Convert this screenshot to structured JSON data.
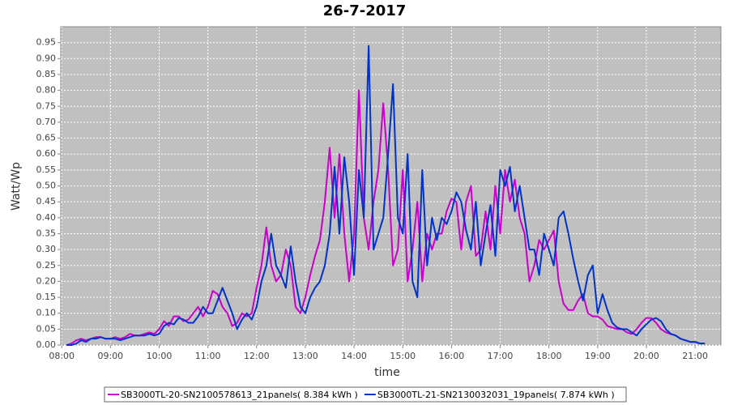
{
  "chart_data": {
    "type": "line",
    "title": "26-7-2017",
    "xlabel": "time",
    "ylabel": "Watt/Wp",
    "x": [
      8.1,
      8.2,
      8.3,
      8.4,
      8.5,
      8.6,
      8.7,
      8.8,
      8.9,
      9.0,
      9.1,
      9.2,
      9.3,
      9.4,
      9.5,
      9.6,
      9.7,
      9.8,
      9.9,
      10.0,
      10.1,
      10.2,
      10.3,
      10.4,
      10.5,
      10.6,
      10.7,
      10.8,
      10.9,
      11.0,
      11.1,
      11.2,
      11.3,
      11.4,
      11.5,
      11.6,
      11.7,
      11.8,
      11.9,
      12.0,
      12.1,
      12.2,
      12.3,
      12.4,
      12.5,
      12.6,
      12.7,
      12.8,
      12.9,
      13.0,
      13.1,
      13.2,
      13.3,
      13.4,
      13.5,
      13.6,
      13.7,
      13.8,
      13.9,
      14.0,
      14.1,
      14.2,
      14.3,
      14.4,
      14.5,
      14.6,
      14.7,
      14.8,
      14.9,
      15.0,
      15.1,
      15.2,
      15.3,
      15.4,
      15.5,
      15.6,
      15.7,
      15.8,
      15.9,
      16.0,
      16.1,
      16.2,
      16.3,
      16.4,
      16.5,
      16.6,
      16.7,
      16.8,
      16.9,
      17.0,
      17.1,
      17.2,
      17.3,
      17.4,
      17.5,
      17.6,
      17.7,
      17.8,
      17.9,
      18.0,
      18.1,
      18.2,
      18.3,
      18.4,
      18.5,
      18.6,
      18.7,
      18.8,
      18.9,
      19.0,
      19.1,
      19.2,
      19.3,
      19.4,
      19.5,
      19.6,
      19.7,
      19.8,
      19.9,
      20.0,
      20.1,
      20.2,
      20.3,
      20.4,
      20.5,
      20.6,
      20.7,
      20.8,
      20.9,
      21.0,
      21.1,
      21.2
    ],
    "series": [
      {
        "name": "SB3000TL-20-SN2100578613_21panels( 8.384 kWh )",
        "color": "#cc00cc",
        "values": [
          0,
          0.005,
          0.015,
          0.02,
          0.015,
          0.02,
          0.025,
          0.025,
          0.02,
          0.02,
          0.025,
          0.02,
          0.025,
          0.035,
          0.03,
          0.03,
          0.035,
          0.04,
          0.035,
          0.05,
          0.075,
          0.06,
          0.09,
          0.09,
          0.075,
          0.08,
          0.1,
          0.12,
          0.09,
          0.12,
          0.17,
          0.16,
          0.12,
          0.1,
          0.06,
          0.07,
          0.1,
          0.09,
          0.1,
          0.18,
          0.25,
          0.37,
          0.25,
          0.2,
          0.22,
          0.3,
          0.25,
          0.12,
          0.1,
          0.15,
          0.22,
          0.28,
          0.33,
          0.45,
          0.62,
          0.4,
          0.6,
          0.35,
          0.2,
          0.35,
          0.8,
          0.4,
          0.3,
          0.45,
          0.55,
          0.76,
          0.55,
          0.25,
          0.3,
          0.55,
          0.2,
          0.3,
          0.45,
          0.2,
          0.35,
          0.3,
          0.35,
          0.35,
          0.42,
          0.46,
          0.45,
          0.3,
          0.45,
          0.5,
          0.28,
          0.3,
          0.42,
          0.3,
          0.5,
          0.35,
          0.55,
          0.45,
          0.52,
          0.4,
          0.35,
          0.2,
          0.25,
          0.33,
          0.3,
          0.33,
          0.36,
          0.2,
          0.13,
          0.11,
          0.11,
          0.14,
          0.16,
          0.1,
          0.09,
          0.09,
          0.08,
          0.06,
          0.055,
          0.05,
          0.05,
          0.04,
          0.035,
          0.05,
          0.07,
          0.085,
          0.085,
          0.07,
          0.05,
          0.04,
          0.035,
          0.03,
          0.02,
          0.015,
          0.01,
          0.01,
          0.005,
          0.005
        ]
      },
      {
        "name": "SB3000TL-21-SN2130032031_19panels( 7.874 kWh )",
        "color": "#0033cc",
        "values": [
          0,
          0,
          0.005,
          0.015,
          0.01,
          0.02,
          0.02,
          0.025,
          0.02,
          0.02,
          0.02,
          0.015,
          0.02,
          0.025,
          0.03,
          0.03,
          0.03,
          0.035,
          0.03,
          0.035,
          0.06,
          0.07,
          0.065,
          0.085,
          0.08,
          0.07,
          0.07,
          0.09,
          0.12,
          0.1,
          0.1,
          0.14,
          0.18,
          0.14,
          0.1,
          0.05,
          0.08,
          0.1,
          0.08,
          0.12,
          0.2,
          0.25,
          0.35,
          0.25,
          0.22,
          0.18,
          0.31,
          0.2,
          0.12,
          0.1,
          0.15,
          0.18,
          0.2,
          0.25,
          0.35,
          0.56,
          0.35,
          0.59,
          0.45,
          0.22,
          0.55,
          0.4,
          0.94,
          0.3,
          0.35,
          0.4,
          0.6,
          0.82,
          0.4,
          0.35,
          0.6,
          0.2,
          0.15,
          0.55,
          0.25,
          0.4,
          0.33,
          0.4,
          0.38,
          0.42,
          0.48,
          0.45,
          0.36,
          0.3,
          0.45,
          0.25,
          0.35,
          0.44,
          0.28,
          0.55,
          0.5,
          0.56,
          0.42,
          0.5,
          0.4,
          0.3,
          0.3,
          0.22,
          0.35,
          0.3,
          0.25,
          0.4,
          0.42,
          0.35,
          0.27,
          0.2,
          0.14,
          0.22,
          0.25,
          0.1,
          0.16,
          0.11,
          0.07,
          0.055,
          0.05,
          0.05,
          0.04,
          0.03,
          0.05,
          0.065,
          0.08,
          0.085,
          0.075,
          0.05,
          0.035,
          0.03,
          0.02,
          0.015,
          0.01,
          0.01,
          0.005,
          0.005
        ]
      }
    ],
    "xlim": [
      7.98,
      21.53
    ],
    "ylim": [
      0,
      1.0
    ],
    "xticks": [
      {
        "value": 8,
        "label": "08:00"
      },
      {
        "value": 9,
        "label": "09:00"
      },
      {
        "value": 10,
        "label": "10:00"
      },
      {
        "value": 11,
        "label": "11:00"
      },
      {
        "value": 12,
        "label": "12:00"
      },
      {
        "value": 13,
        "label": "13:00"
      },
      {
        "value": 14,
        "label": "14:00"
      },
      {
        "value": 15,
        "label": "15:00"
      },
      {
        "value": 16,
        "label": "16:00"
      },
      {
        "value": 17,
        "label": "17:00"
      },
      {
        "value": 18,
        "label": "18:00"
      },
      {
        "value": 19,
        "label": "19:00"
      },
      {
        "value": 20,
        "label": "20:00"
      },
      {
        "value": 21,
        "label": "21:00"
      }
    ],
    "yticks": [
      {
        "value": 0,
        "label": "0.00"
      },
      {
        "value": 0.05,
        "label": "0.05"
      },
      {
        "value": 0.1,
        "label": "0.10"
      },
      {
        "value": 0.15,
        "label": "0.15"
      },
      {
        "value": 0.2,
        "label": "0.20"
      },
      {
        "value": 0.25,
        "label": "0.25"
      },
      {
        "value": 0.3,
        "label": "0.30"
      },
      {
        "value": 0.35,
        "label": "0.35"
      },
      {
        "value": 0.4,
        "label": "0.40"
      },
      {
        "value": 0.45,
        "label": "0.45"
      },
      {
        "value": 0.5,
        "label": "0.50"
      },
      {
        "value": 0.55,
        "label": "0.55"
      },
      {
        "value": 0.6,
        "label": "0.60"
      },
      {
        "value": 0.65,
        "label": "0.65"
      },
      {
        "value": 0.7,
        "label": "0.70"
      },
      {
        "value": 0.75,
        "label": "0.75"
      },
      {
        "value": 0.8,
        "label": "0.80"
      },
      {
        "value": 0.85,
        "label": "0.85"
      },
      {
        "value": 0.9,
        "label": "0.90"
      },
      {
        "value": 0.95,
        "label": "0.95"
      }
    ],
    "grid": true
  }
}
